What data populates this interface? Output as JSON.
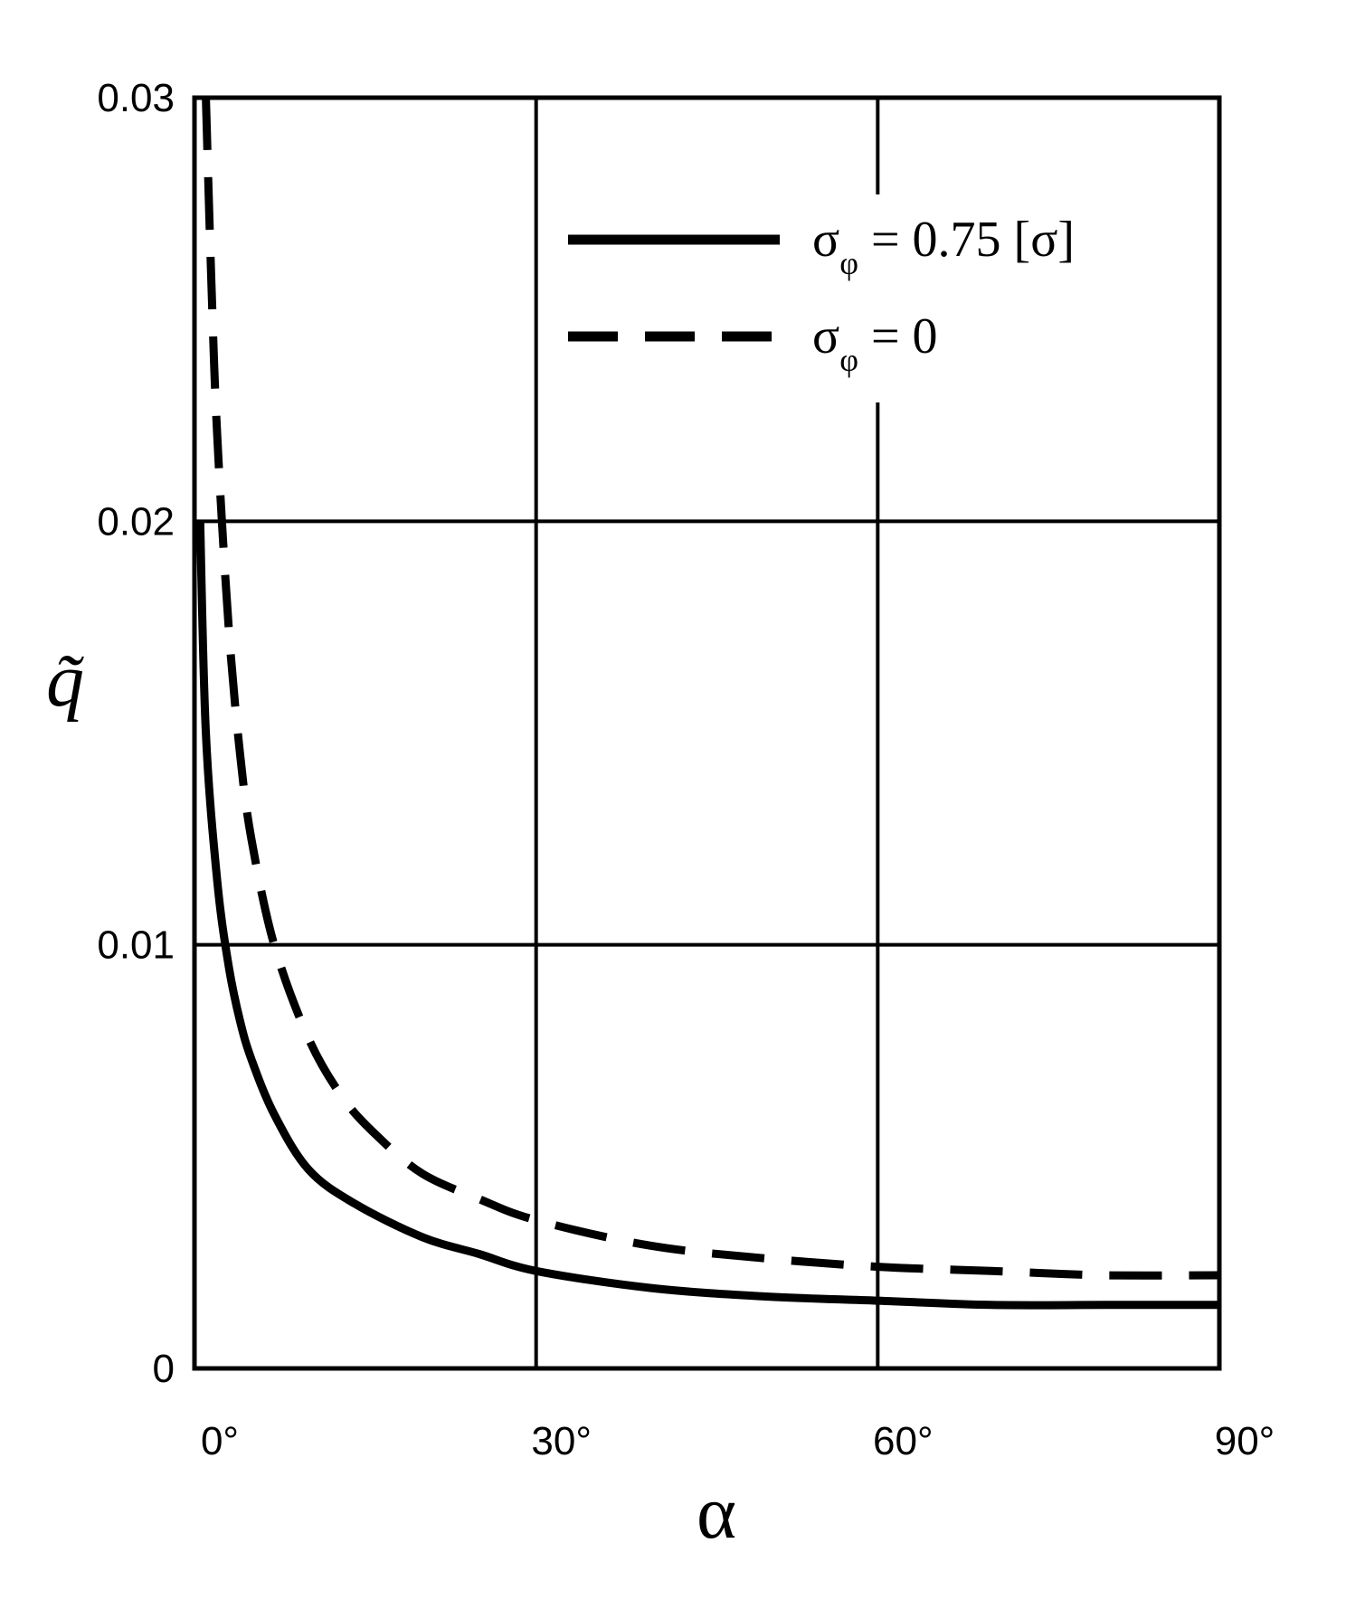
{
  "chart_data": {
    "type": "line",
    "xlabel": "α",
    "ylabel": "q̃",
    "xlim": [
      0,
      90
    ],
    "ylim": [
      0,
      0.03
    ],
    "x_tick_values": [
      0,
      30,
      60,
      90
    ],
    "x_tick_labels": [
      "0°",
      "30°",
      "60°",
      "90°"
    ],
    "y_tick_values": [
      0,
      0.01,
      0.02,
      0.03
    ],
    "y_tick_labels": [
      "0",
      "0.01",
      "0.02",
      "0.03"
    ],
    "grid": true,
    "legend_position": "top-right",
    "series": [
      {
        "name": "σφ = 0.75 [σ]",
        "legend_main": "σ",
        "legend_sub": "φ",
        "legend_rest": " = 0.75 [σ]",
        "style": "solid",
        "color": "#000000",
        "x": [
          0.5,
          1,
          2,
          3,
          4,
          5,
          7,
          10,
          14,
          20,
          25,
          30,
          40,
          50,
          60,
          70,
          80,
          90
        ],
        "y": [
          0.02,
          0.015,
          0.0115,
          0.0095,
          0.0082,
          0.0073,
          0.006,
          0.0047,
          0.0039,
          0.0031,
          0.0027,
          0.0023,
          0.0019,
          0.0017,
          0.0016,
          0.0015,
          0.0015,
          0.0015
        ]
      },
      {
        "name": "σφ = 0",
        "legend_main": "σ",
        "legend_sub": "φ",
        "legend_rest": " = 0",
        "style": "dashed",
        "color": "#000000",
        "x": [
          1,
          1.5,
          2,
          3,
          4,
          5,
          7,
          10,
          13,
          16,
          20,
          25,
          30,
          40,
          50,
          60,
          70,
          80,
          90
        ],
        "y": [
          0.03,
          0.0255,
          0.022,
          0.0175,
          0.0145,
          0.0125,
          0.01,
          0.0078,
          0.0064,
          0.0055,
          0.0046,
          0.004,
          0.0035,
          0.0029,
          0.0026,
          0.0024,
          0.0023,
          0.0022,
          0.0022
        ]
      }
    ]
  }
}
